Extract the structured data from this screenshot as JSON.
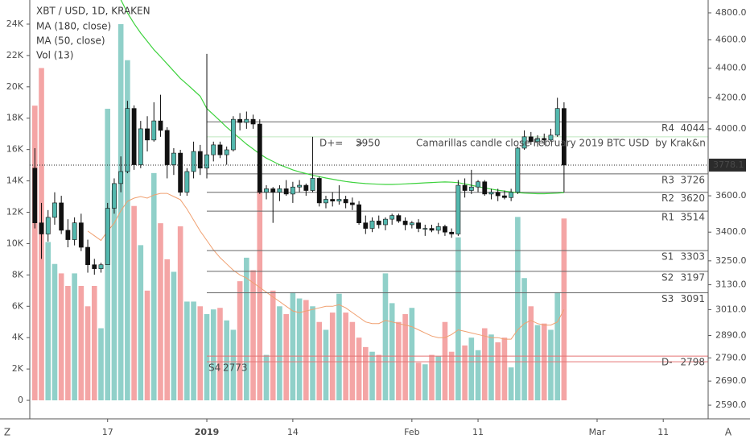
{
  "chart_data": {
    "type": "candlestick",
    "title": "XBT / USD, 1D, KRAKEN",
    "indicators": [
      "MA (180, close)",
      "MA (50, close)",
      "Vol (13)"
    ],
    "categories": [
      null,
      null,
      null,
      null,
      null,
      null,
      null,
      null,
      null,
      null,
      null,
      "17",
      null,
      null,
      null,
      null,
      null,
      null,
      null,
      null,
      null,
      null,
      null,
      null,
      null,
      null,
      "2019",
      null,
      null,
      null,
      null,
      null,
      null,
      null,
      null,
      null,
      null,
      null,
      null,
      "14",
      null,
      null,
      null,
      null,
      null,
      null,
      null,
      null,
      null,
      null,
      null,
      null,
      null,
      null,
      null,
      null,
      null,
      "Feb",
      null,
      null,
      null,
      null,
      null,
      null,
      null,
      null,
      null,
      "11",
      null,
      null,
      null,
      null,
      null,
      null,
      null,
      null,
      null,
      null,
      null,
      null,
      null,
      null,
      null,
      null,
      null,
      "Mar",
      null,
      null,
      null,
      null,
      null,
      null,
      null,
      null,
      null,
      "11"
    ],
    "open": [
      3760,
      3450,
      3390,
      3480,
      3560,
      3410,
      3360,
      3450,
      3320,
      3230,
      3210,
      3230,
      3530,
      3670,
      3740,
      4130,
      3780,
      4000,
      3930,
      4050,
      3990,
      3780,
      3850,
      3620,
      3740,
      3860,
      3760,
      3840,
      3900,
      3840,
      3870,
      4060,
      4040,
      4060,
      4030,
      3620,
      3640,
      3620,
      3640,
      3610,
      3650,
      3660,
      3630,
      3700,
      3560,
      3580,
      3570,
      3580,
      3560,
      3550,
      3450,
      3420,
      3460,
      3440,
      3470,
      3490,
      3460,
      3440,
      3450,
      3420,
      3420,
      3410,
      3430,
      3400,
      3390,
      3660,
      3630,
      3650,
      3680,
      3610,
      3620,
      3600,
      3590,
      3620,
      3880,
      3950,
      3920,
      3940,
      3930,
      3960,
      4130,
      null,
      null,
      null,
      null,
      null,
      null,
      null,
      null,
      null,
      null,
      null,
      null,
      null,
      null,
      null
    ],
    "high": [
      3880,
      3560,
      3520,
      3620,
      3600,
      3470,
      3480,
      3500,
      3360,
      3260,
      3240,
      3560,
      3700,
      3830,
      4180,
      4150,
      4050,
      4080,
      4170,
      4220,
      4010,
      3880,
      3870,
      3760,
      3920,
      3900,
      4500,
      3920,
      3920,
      3890,
      4080,
      4100,
      4110,
      4090,
      4060,
      3660,
      3650,
      3660,
      3690,
      3680,
      3690,
      3670,
      3950,
      3710,
      3600,
      3620,
      3660,
      3600,
      3590,
      3570,
      3490,
      3480,
      3490,
      3480,
      3500,
      3500,
      3480,
      3460,
      3470,
      3440,
      3440,
      3450,
      3440,
      3420,
      3690,
      3700,
      3750,
      3690,
      3690,
      3640,
      3640,
      3630,
      3640,
      3890,
      3990,
      3980,
      3960,
      3970,
      4000,
      4200,
      4170,
      null,
      null,
      null,
      null,
      null,
      null,
      null,
      null,
      null,
      null,
      null,
      null,
      null,
      null,
      null
    ],
    "low": [
      3420,
      3260,
      3350,
      3440,
      3390,
      3320,
      3330,
      3300,
      3190,
      3180,
      3190,
      3230,
      3500,
      3620,
      3730,
      3750,
      3760,
      3860,
      3920,
      3950,
      3700,
      3720,
      3600,
      3600,
      3700,
      3720,
      3700,
      3800,
      3820,
      3780,
      3860,
      3990,
      4000,
      4000,
      3610,
      3580,
      3450,
      3570,
      3600,
      3560,
      3620,
      3600,
      3620,
      3540,
      3530,
      3540,
      3550,
      3530,
      3520,
      3440,
      3390,
      3400,
      3420,
      3410,
      3440,
      3450,
      3410,
      3420,
      3400,
      3380,
      3400,
      3390,
      3380,
      3370,
      3380,
      3590,
      3610,
      3620,
      3600,
      3580,
      3570,
      3580,
      3570,
      3610,
      3870,
      3900,
      3890,
      3900,
      3920,
      3950,
      3620,
      null,
      null,
      null,
      null,
      null,
      null,
      null,
      null,
      null,
      null,
      null,
      null,
      null,
      null,
      null
    ],
    "close": [
      3450,
      3390,
      3480,
      3560,
      3410,
      3360,
      3450,
      3320,
      3230,
      3210,
      3230,
      3530,
      3670,
      3740,
      4130,
      3780,
      4000,
      3930,
      4050,
      3990,
      3780,
      3850,
      3620,
      3740,
      3860,
      3760,
      3840,
      3900,
      3840,
      3870,
      4060,
      4040,
      4060,
      4030,
      3620,
      3640,
      3620,
      3640,
      3610,
      3650,
      3660,
      3630,
      3700,
      3560,
      3580,
      3570,
      3580,
      3560,
      3550,
      3450,
      3420,
      3460,
      3440,
      3470,
      3490,
      3460,
      3440,
      3450,
      3420,
      3420,
      3410,
      3430,
      3400,
      3390,
      3660,
      3630,
      3650,
      3680,
      3610,
      3620,
      3600,
      3590,
      3620,
      3880,
      3950,
      3920,
      3940,
      3930,
      3960,
      4130,
      3778.1,
      null,
      null,
      null,
      null,
      null,
      null,
      null,
      null,
      null,
      null,
      null,
      null,
      null,
      null,
      null
    ],
    "up_color": "#53b8ae",
    "down_color": "#111111",
    "series": [
      {
        "name": "MA (50, close)",
        "color": "#3ed23e",
        "values": [
          null,
          null,
          null,
          null,
          null,
          null,
          null,
          null,
          null,
          null,
          null,
          null,
          null,
          4900,
          4800,
          4720,
          4650,
          4590,
          4530,
          4480,
          4430,
          4380,
          4330,
          4290,
          4250,
          4210,
          4130,
          4090,
          4050,
          4010,
          3975,
          3940,
          3905,
          3875,
          3845,
          3820,
          3800,
          3780,
          3765,
          3750,
          3738,
          3728,
          3718,
          3710,
          3702,
          3695,
          3688,
          3682,
          3677,
          3673,
          3670,
          3668,
          3666,
          3665,
          3665,
          3666,
          3668,
          3670,
          3672,
          3674,
          3676,
          3678,
          3679,
          3678,
          3675,
          3668,
          3660,
          3652,
          3645,
          3638,
          3632,
          3627,
          3622,
          3618,
          3615,
          3613,
          3612,
          3612,
          3613,
          3615,
          3618,
          null,
          null,
          null,
          null,
          null,
          null,
          null,
          null,
          null,
          null,
          null,
          null,
          null,
          null,
          null
        ]
      }
    ],
    "volume": {
      "axis": "y2",
      "up_color": "#90d0c9",
      "down_color": "#f4a5a5",
      "values": [
        18800,
        21200,
        10100,
        8700,
        8100,
        7300,
        8100,
        7300,
        6000,
        7300,
        4600,
        18600,
        13400,
        24000,
        21700,
        12400,
        9900,
        7000,
        14500,
        11300,
        9000,
        8200,
        11100,
        6300,
        6300,
        6000,
        5500,
        5800,
        5900,
        5100,
        4500,
        7600,
        9100,
        8300,
        13400,
        2900,
        7000,
        6000,
        5500,
        6900,
        6500,
        6400,
        6000,
        5000,
        4500,
        5600,
        6800,
        5600,
        5000,
        4000,
        3400,
        3100,
        2900,
        8100,
        6200,
        5000,
        5500,
        5900,
        2400,
        2300,
        2900,
        2800,
        5000,
        3100,
        10400,
        3500,
        4000,
        3200,
        4600,
        4200,
        3700,
        4000,
        2100,
        11700,
        7800,
        6000,
        4800,
        4900,
        4500,
        6900,
        11600,
        null,
        null,
        null,
        null,
        null,
        null,
        null,
        null,
        null,
        null,
        null,
        null,
        null,
        null,
        null
      ],
      "ma_color": "#f0a070",
      "ma_values": [
        null,
        null,
        null,
        null,
        null,
        null,
        null,
        null,
        10800,
        10500,
        10200,
        10800,
        11300,
        12100,
        12700,
        12900,
        13000,
        12900,
        13100,
        13200,
        13200,
        13000,
        12800,
        12200,
        11500,
        10800,
        10200,
        9600,
        9100,
        8700,
        8300,
        8000,
        7800,
        7500,
        7200,
        6900,
        6600,
        6300,
        6000,
        5700,
        5600,
        5700,
        5800,
        5900,
        6000,
        6000,
        6100,
        5900,
        5600,
        5300,
        5000,
        4900,
        4900,
        5100,
        5000,
        4900,
        4800,
        4700,
        4500,
        4300,
        4100,
        4000,
        4000,
        4200,
        4500,
        4400,
        4300,
        4200,
        4100,
        4000,
        4000,
        3900,
        3900,
        4500,
        4900,
        5100,
        4900,
        4800,
        4800,
        5000,
        5800,
        null,
        null,
        null,
        null,
        null,
        null,
        null,
        null,
        null,
        null,
        null,
        null,
        null,
        null,
        null
      ]
    },
    "yscale": "log",
    "ylim": [
      2535,
      4898
    ],
    "yticks": [
      {
        "value": 4800,
        "label": "4800.0"
      },
      {
        "value": 4600,
        "label": "4600.0"
      },
      {
        "value": 4400,
        "label": "4400.0"
      },
      {
        "value": 4200,
        "label": "4200.0"
      },
      {
        "value": 4000,
        "label": "4000.0"
      },
      {
        "value": 3600,
        "label": "3600.0"
      },
      {
        "value": 3400,
        "label": "3400.0"
      },
      {
        "value": 3250,
        "label": "3250.0"
      },
      {
        "value": 3130,
        "label": "3130.0"
      },
      {
        "value": 3010,
        "label": "3010.0"
      },
      {
        "value": 2890,
        "label": "2890.0"
      },
      {
        "value": 2790,
        "label": "2790.0"
      },
      {
        "value": 2690,
        "label": "2690.0"
      },
      {
        "value": 2590,
        "label": "2590.0"
      }
    ],
    "y2lim": [
      -1180,
      25540
    ],
    "y2ticks": [
      0,
      {
        "value": 2000,
        "label": "2K"
      },
      {
        "value": 4000,
        "label": "4K"
      },
      {
        "value": 6000,
        "label": "6K"
      },
      {
        "value": 8000,
        "label": "8K"
      },
      {
        "value": 10000,
        "label": "10K"
      },
      {
        "value": 12000,
        "label": "12K"
      },
      {
        "value": 14000,
        "label": "14K"
      },
      {
        "value": 16000,
        "label": "16K"
      },
      {
        "value": 18000,
        "label": "18K"
      },
      {
        "value": 20000,
        "label": "20K"
      },
      {
        "value": 22000,
        "label": "22K"
      },
      {
        "value": 24000,
        "label": "24K"
      }
    ],
    "grid": false,
    "levels": [
      {
        "name": "R4",
        "value": 4044,
        "color": "#666666",
        "label_color": "#333333",
        "side": "right"
      },
      {
        "name": "R3",
        "value": 3726,
        "color": "#666666",
        "label_color": "#333333",
        "side": "right"
      },
      {
        "name": "R2",
        "value": 3620,
        "color": "#666666",
        "label_color": "#333333",
        "side": "right"
      },
      {
        "name": "R1",
        "value": 3514,
        "color": "#666666",
        "label_color": "#333333",
        "side": "right"
      },
      {
        "name": "S1",
        "value": 3303,
        "color": "#666666",
        "label_color": "#e53935",
        "side": "right"
      },
      {
        "name": "S2",
        "value": 3197,
        "color": "#666666",
        "label_color": "#e53935",
        "side": "right"
      },
      {
        "name": "S3",
        "value": 3091,
        "color": "#666666",
        "label_color": "#e53935",
        "side": "right"
      },
      {
        "name": "S4",
        "value": 2773,
        "color": "#e57373",
        "label_color": "#e53935",
        "side": "left"
      },
      {
        "name": "D-",
        "value": 2798,
        "color": "#e57373",
        "label_color": "#e53935",
        "side": "right"
      },
      {
        "name": "D+=    >",
        "value": 3950,
        "color": "#bfe8bf",
        "label_color": "#2aa82a",
        "side": "middle",
        "note": "Camarillas candle close February 2019 BTC USD  by Krak&n"
      }
    ]
  },
  "toolbar": {
    "left": "Z",
    "right": "A"
  }
}
